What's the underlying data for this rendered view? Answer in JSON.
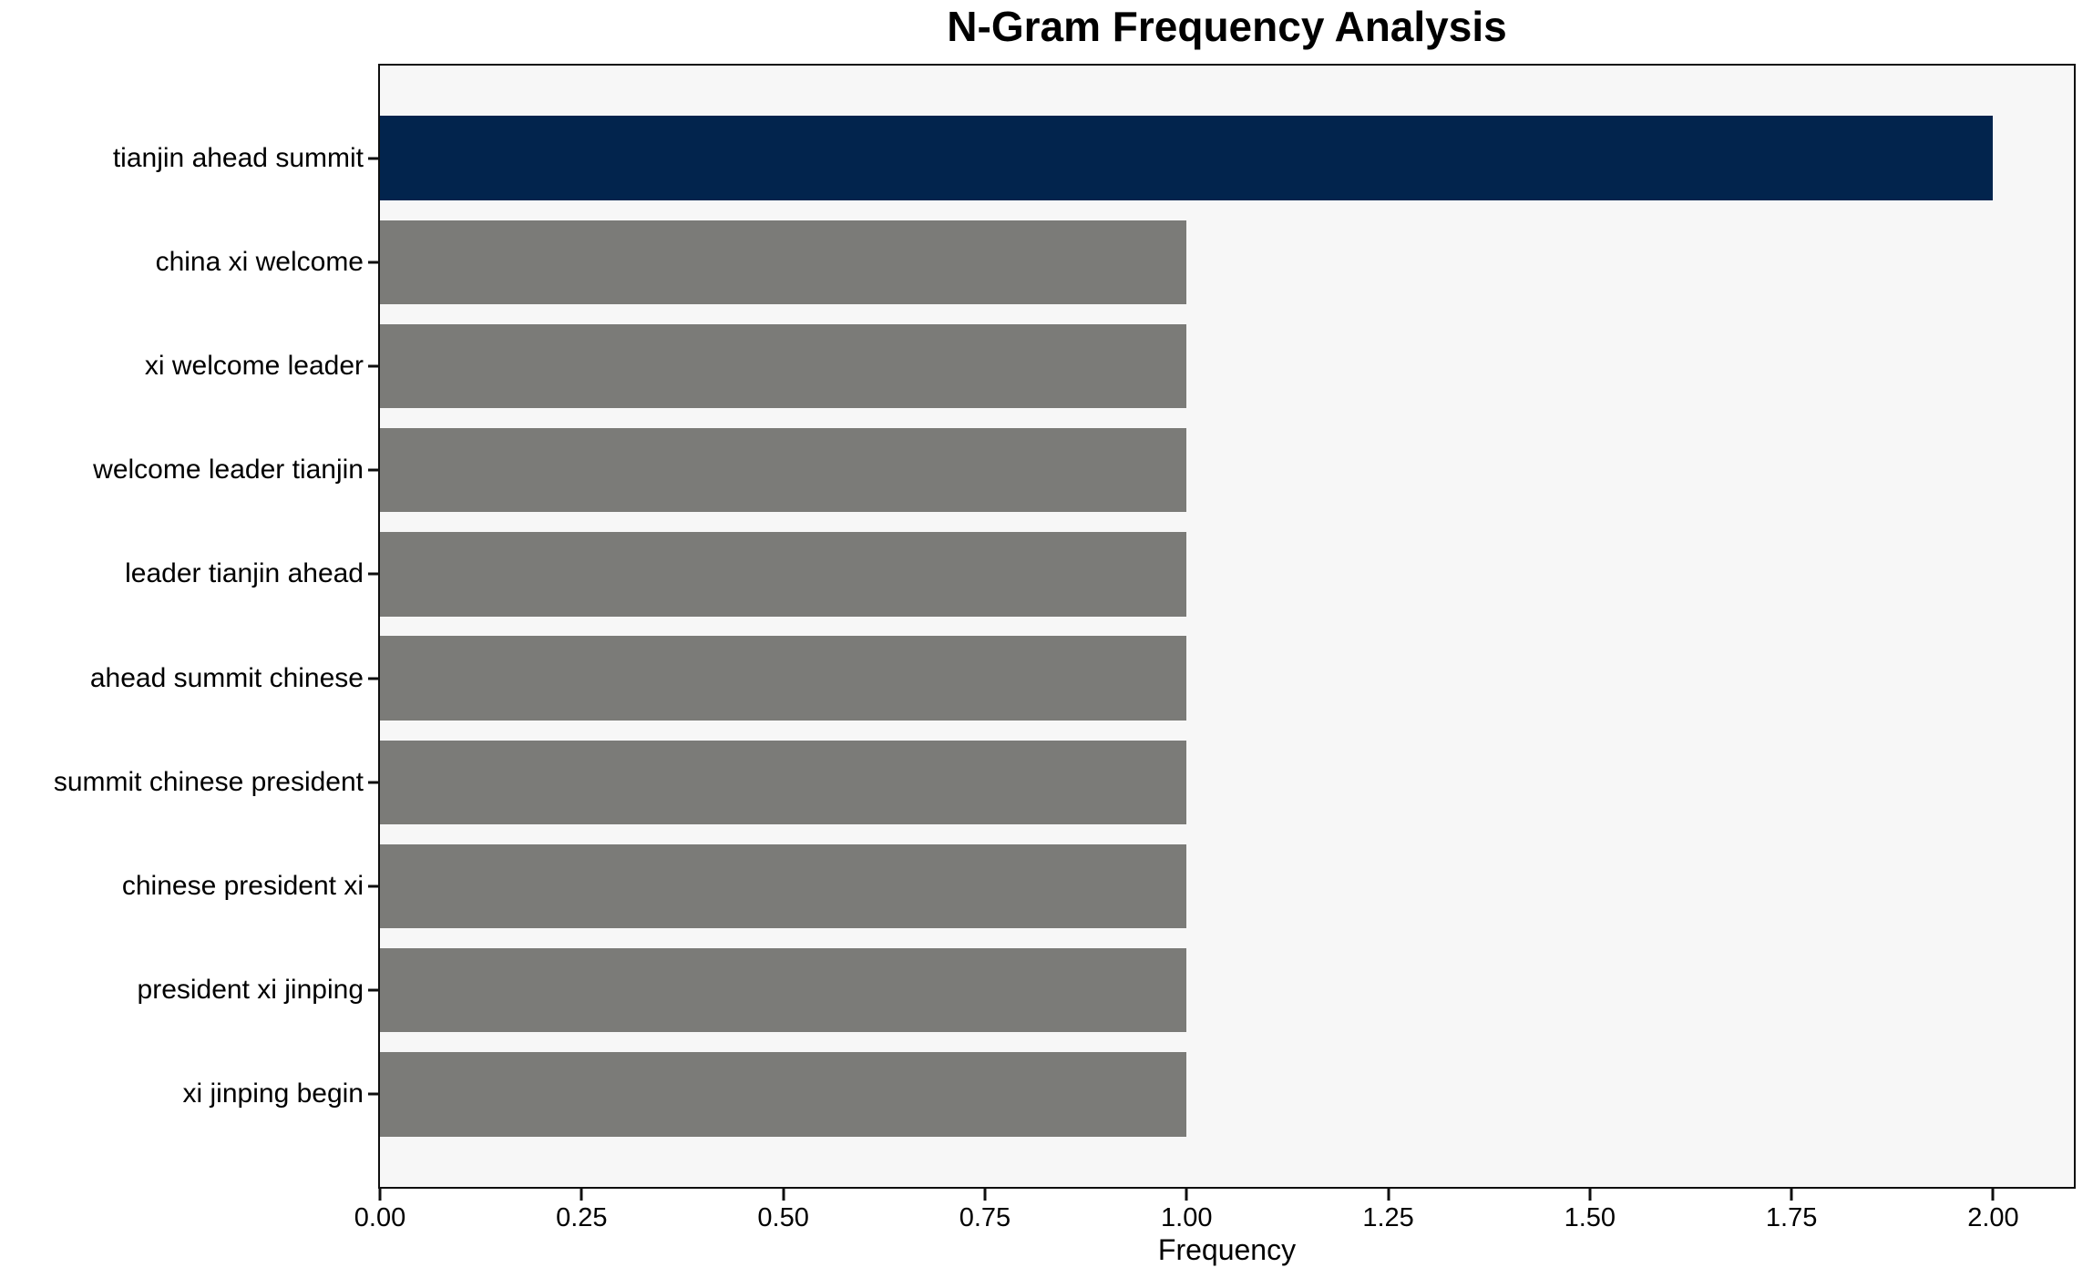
{
  "chart_data": {
    "type": "bar",
    "orientation": "horizontal",
    "title": "N-Gram Frequency Analysis",
    "xlabel": "Frequency",
    "ylabel": "",
    "categories": [
      "tianjin ahead summit",
      "china xi welcome",
      "xi welcome leader",
      "welcome leader tianjin",
      "leader tianjin ahead",
      "ahead summit chinese",
      "summit chinese president",
      "chinese president xi",
      "president xi jinping",
      "xi jinping begin"
    ],
    "values": [
      2,
      1,
      1,
      1,
      1,
      1,
      1,
      1,
      1,
      1
    ],
    "bar_colors": [
      "#02244d",
      "#7b7b78",
      "#7b7b78",
      "#7b7b78",
      "#7b7b78",
      "#7b7b78",
      "#7b7b78",
      "#7b7b78",
      "#7b7b78",
      "#7b7b78"
    ],
    "xlim": [
      0,
      2.1
    ],
    "xticks": [
      {
        "value": 0.0,
        "label": "0.00"
      },
      {
        "value": 0.25,
        "label": "0.25"
      },
      {
        "value": 0.5,
        "label": "0.50"
      },
      {
        "value": 0.75,
        "label": "0.75"
      },
      {
        "value": 1.0,
        "label": "1.00"
      },
      {
        "value": 1.25,
        "label": "1.25"
      },
      {
        "value": 1.5,
        "label": "1.50"
      },
      {
        "value": 1.75,
        "label": "1.75"
      },
      {
        "value": 2.0,
        "label": "2.00"
      }
    ],
    "grid": false,
    "legend": null,
    "plot_background": "#f7f7f7",
    "figure_background": "#ffffff",
    "spine_color": "#0f0f0f"
  }
}
